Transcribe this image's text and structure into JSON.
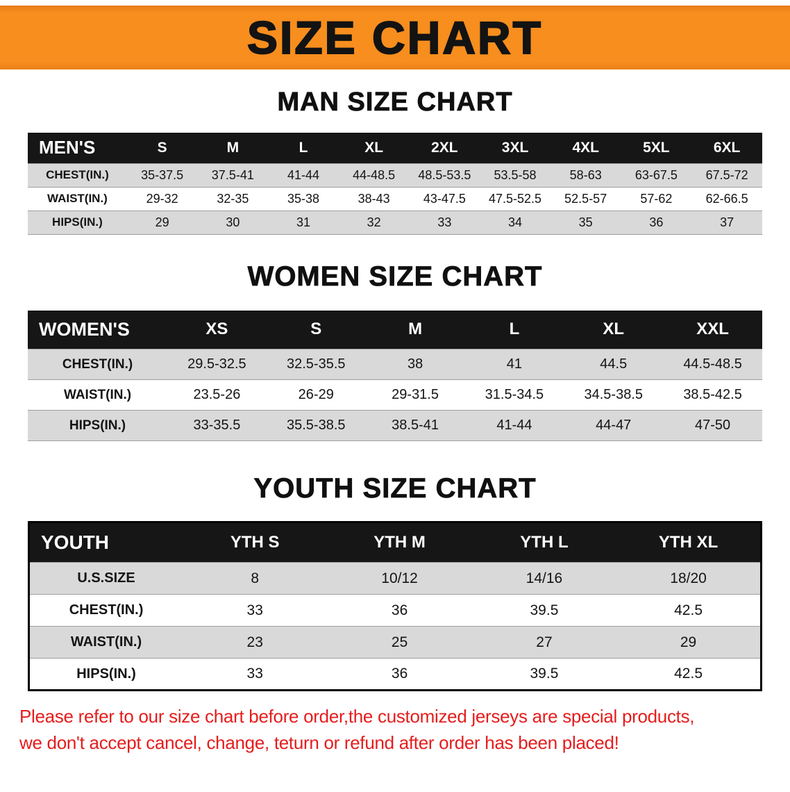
{
  "banner": {
    "title": "SIZE CHART",
    "bg_color": "#f78e1e"
  },
  "sections": [
    {
      "id": "mens",
      "heading": "MAN SIZE CHART",
      "table": {
        "header": [
          "MEN'S",
          "S",
          "M",
          "L",
          "XL",
          "2XL",
          "3XL",
          "4XL",
          "5XL",
          "6XL"
        ],
        "rows": [
          [
            "CHEST(IN.)",
            "35-37.5",
            "37.5-41",
            "41-44",
            "44-48.5",
            "48.5-53.5",
            "53.5-58",
            "58-63",
            "63-67.5",
            "67.5-72"
          ],
          [
            "WAIST(IN.)",
            "29-32",
            "32-35",
            "35-38",
            "38-43",
            "43-47.5",
            "47.5-52.5",
            "52.5-57",
            "57-62",
            "62-66.5"
          ],
          [
            "HIPS(IN.)",
            "29",
            "30",
            "31",
            "32",
            "33",
            "34",
            "35",
            "36",
            "37"
          ]
        ]
      }
    },
    {
      "id": "womens",
      "heading": "WOMEN SIZE CHART",
      "table": {
        "header": [
          "WOMEN'S",
          "XS",
          "S",
          "M",
          "L",
          "XL",
          "XXL"
        ],
        "rows": [
          [
            "CHEST(IN.)",
            "29.5-32.5",
            "32.5-35.5",
            "38",
            "41",
            "44.5",
            "44.5-48.5"
          ],
          [
            "WAIST(IN.)",
            "23.5-26",
            "26-29",
            "29-31.5",
            "31.5-34.5",
            "34.5-38.5",
            "38.5-42.5"
          ],
          [
            "HIPS(IN.)",
            "33-35.5",
            "35.5-38.5",
            "38.5-41",
            "41-44",
            "44-47",
            "47-50"
          ]
        ]
      }
    },
    {
      "id": "youth",
      "heading": "YOUTH SIZE CHART",
      "table": {
        "header": [
          "YOUTH",
          "YTH S",
          "YTH M",
          "YTH L",
          "YTH XL"
        ],
        "rows": [
          [
            "U.S.SIZE",
            "8",
            "10/12",
            "14/16",
            "18/20"
          ],
          [
            "CHEST(IN.)",
            "33",
            "36",
            "39.5",
            "42.5"
          ],
          [
            "WAIST(IN.)",
            "23",
            "25",
            "27",
            "29"
          ],
          [
            "HIPS(IN.)",
            "33",
            "36",
            "39.5",
            "42.5"
          ]
        ]
      }
    }
  ],
  "notice": {
    "color": "#e51d1d",
    "lines": [
      "Please refer to our size chart before order,the customized jerseys are special products,",
      "we don't accept cancel, change, teturn or refund after order has been placed!"
    ]
  },
  "colors": {
    "banner_orange": "#f78e1e",
    "table_header_black": "#161616",
    "row_stripe_gray": "#d9d9d9",
    "notice_red": "#e51d1d"
  }
}
